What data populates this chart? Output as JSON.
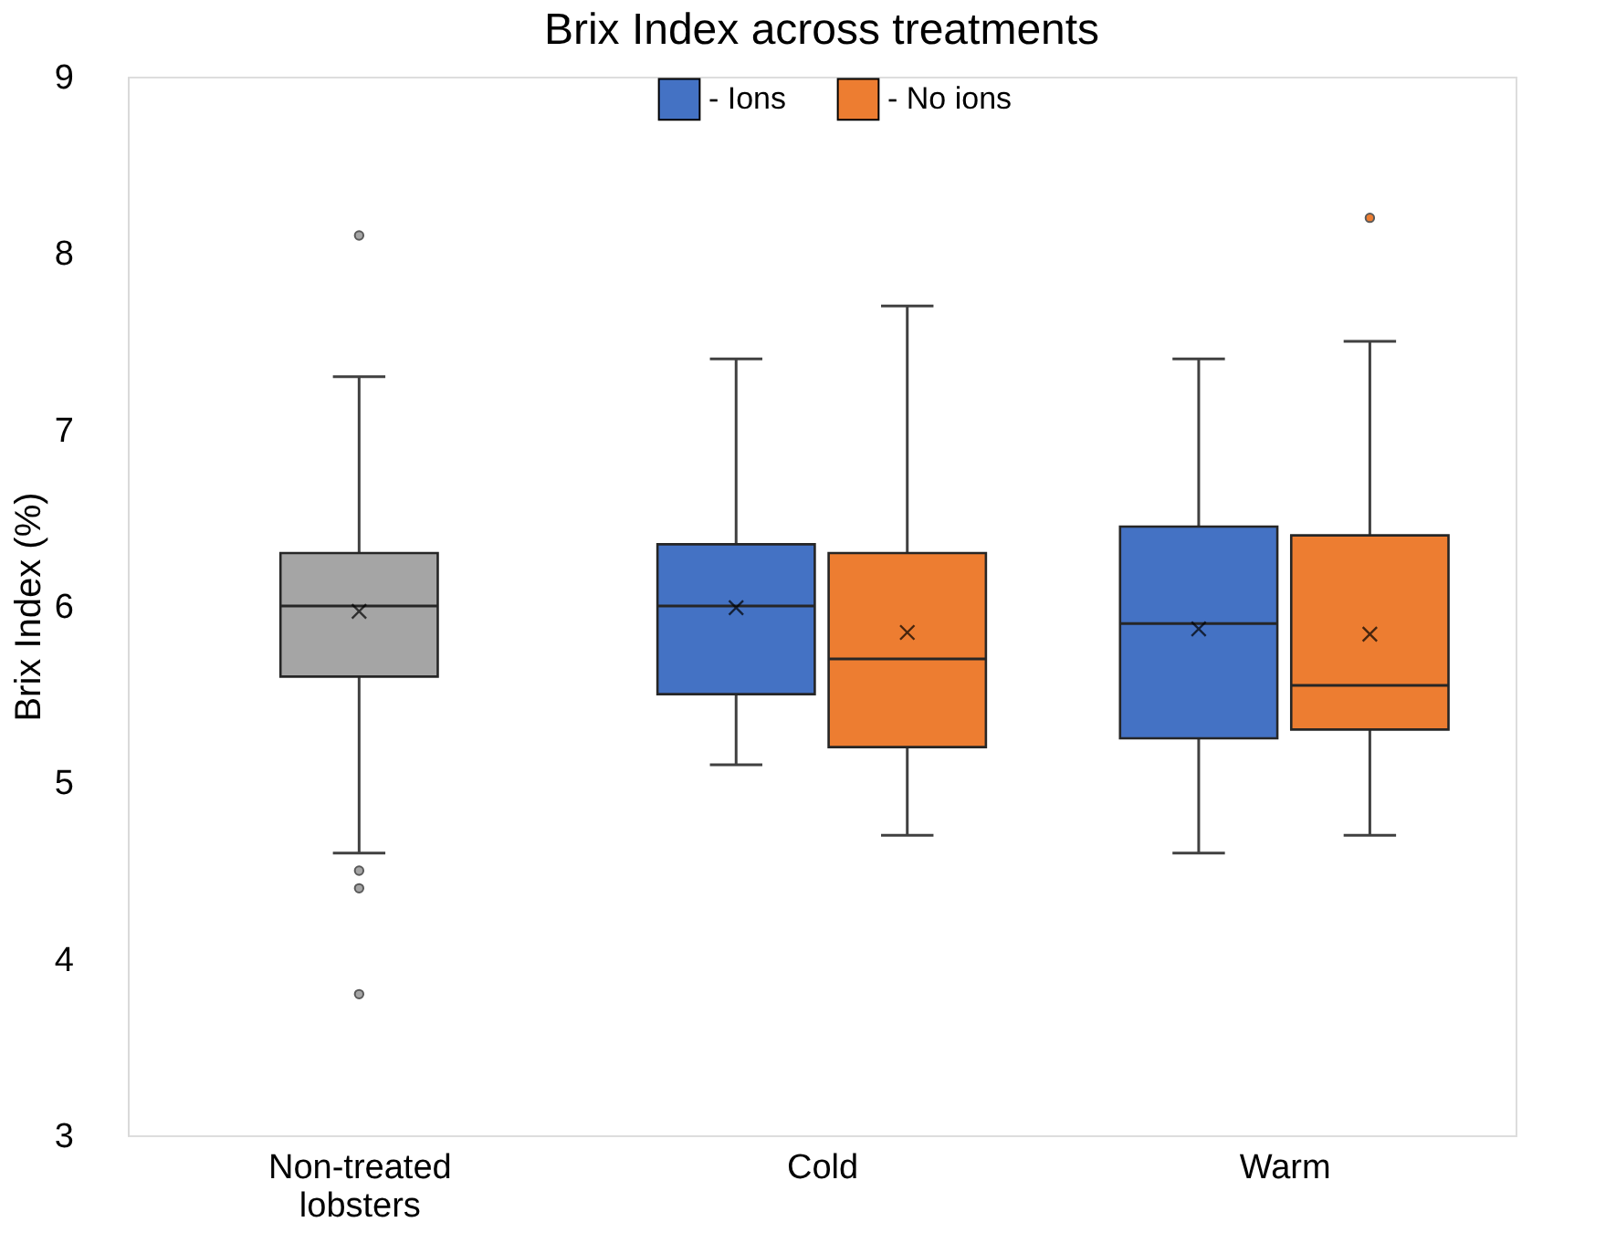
{
  "chart_data": {
    "type": "box",
    "title": "Brix Index across treatments",
    "ylabel": "Brix Index (%)",
    "categories": [
      "Non-treated lobsters",
      "Cold",
      "Warm"
    ],
    "ylim": [
      3,
      9
    ],
    "yticks": [
      3,
      4,
      5,
      6,
      7,
      8,
      9
    ],
    "legend": "top",
    "series": [
      {
        "color": "#a5a5a5",
        "boxes": [
          {
            "low": 4.6,
            "q1": 5.6,
            "median": 6.0,
            "q3": 6.3,
            "high": 7.3,
            "mean": 5.97,
            "outliers": [
              8.1,
              4.5,
              4.4,
              3.8
            ]
          },
          null,
          null
        ]
      },
      {
        "name": "- Ions",
        "color": "#4472c4",
        "boxes": [
          null,
          {
            "low": 5.1,
            "q1": 5.5,
            "median": 6.0,
            "q3": 6.35,
            "high": 7.4,
            "mean": 5.99
          },
          {
            "low": 4.6,
            "q1": 5.25,
            "median": 5.9,
            "q3": 6.45,
            "high": 7.4,
            "mean": 5.87
          }
        ]
      },
      {
        "name": "- No ions",
        "color": "#ed7d31",
        "boxes": [
          null,
          {
            "low": 4.7,
            "q1": 5.2,
            "median": 5.7,
            "q3": 6.3,
            "high": 7.7,
            "mean": 5.85
          },
          {
            "low": 4.7,
            "q1": 5.3,
            "median": 5.55,
            "q3": 6.4,
            "high": 7.5,
            "mean": 5.84,
            "outliers": [
              8.2
            ]
          }
        ]
      }
    ]
  }
}
